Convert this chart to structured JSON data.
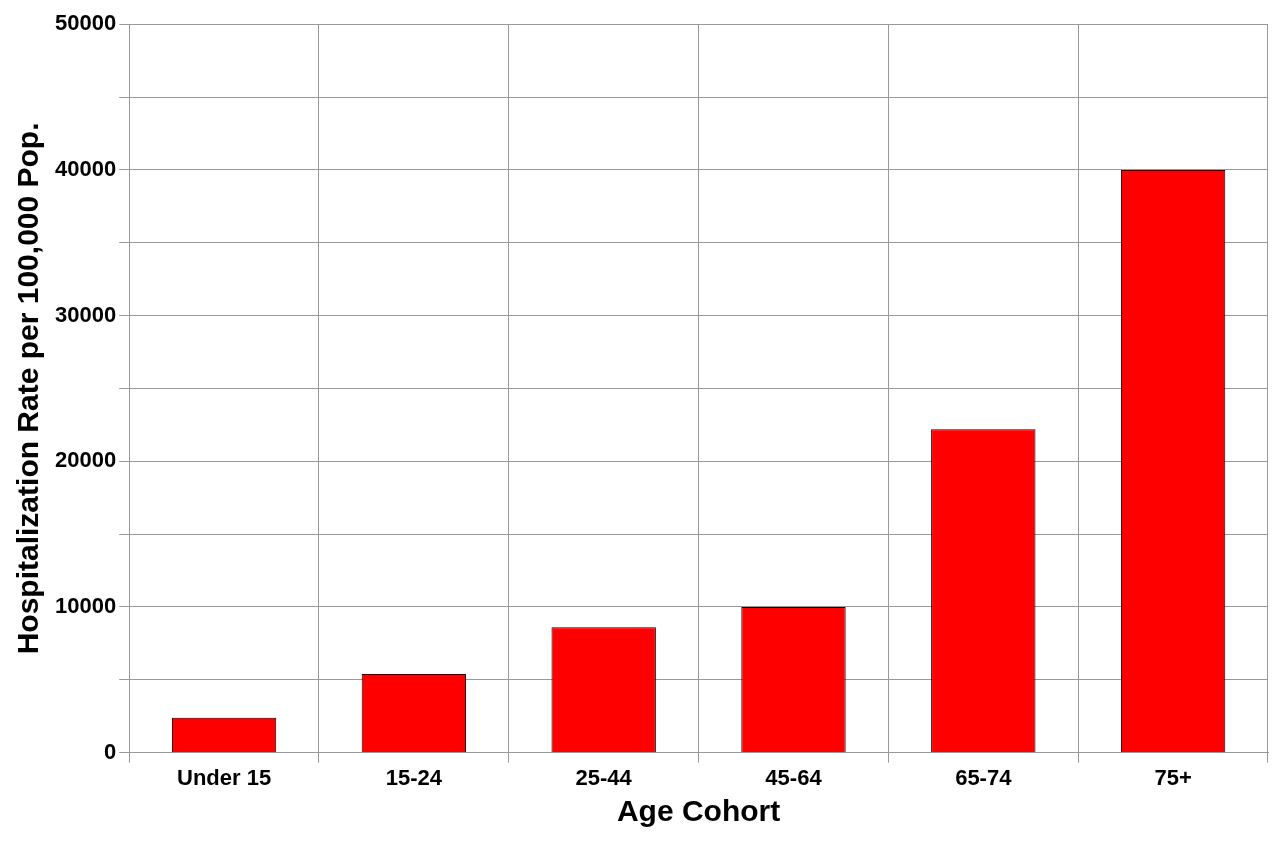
{
  "chart_data": {
    "type": "bar",
    "xlabel": "Age Cohort",
    "ylabel": "Hospitalization Rate per 100,000 Pop.",
    "categories": [
      "Under 15",
      "15-24",
      "25-44",
      "45-64",
      "65-74",
      "75+"
    ],
    "values": [
      2400,
      5400,
      8600,
      10000,
      22200,
      40000
    ],
    "color": "#ff0000",
    "ylim": [
      0,
      50000
    ],
    "yticks": [
      0,
      {
        "value": 5000,
        "label": null
      },
      10000,
      {
        "value": 15000,
        "label": null
      },
      20000,
      {
        "value": 25000,
        "label": null
      },
      30000,
      {
        "value": 35000,
        "label": null
      },
      40000,
      {
        "value": 45000,
        "label": null
      },
      50000
    ],
    "grid": true,
    "legend": false
  }
}
